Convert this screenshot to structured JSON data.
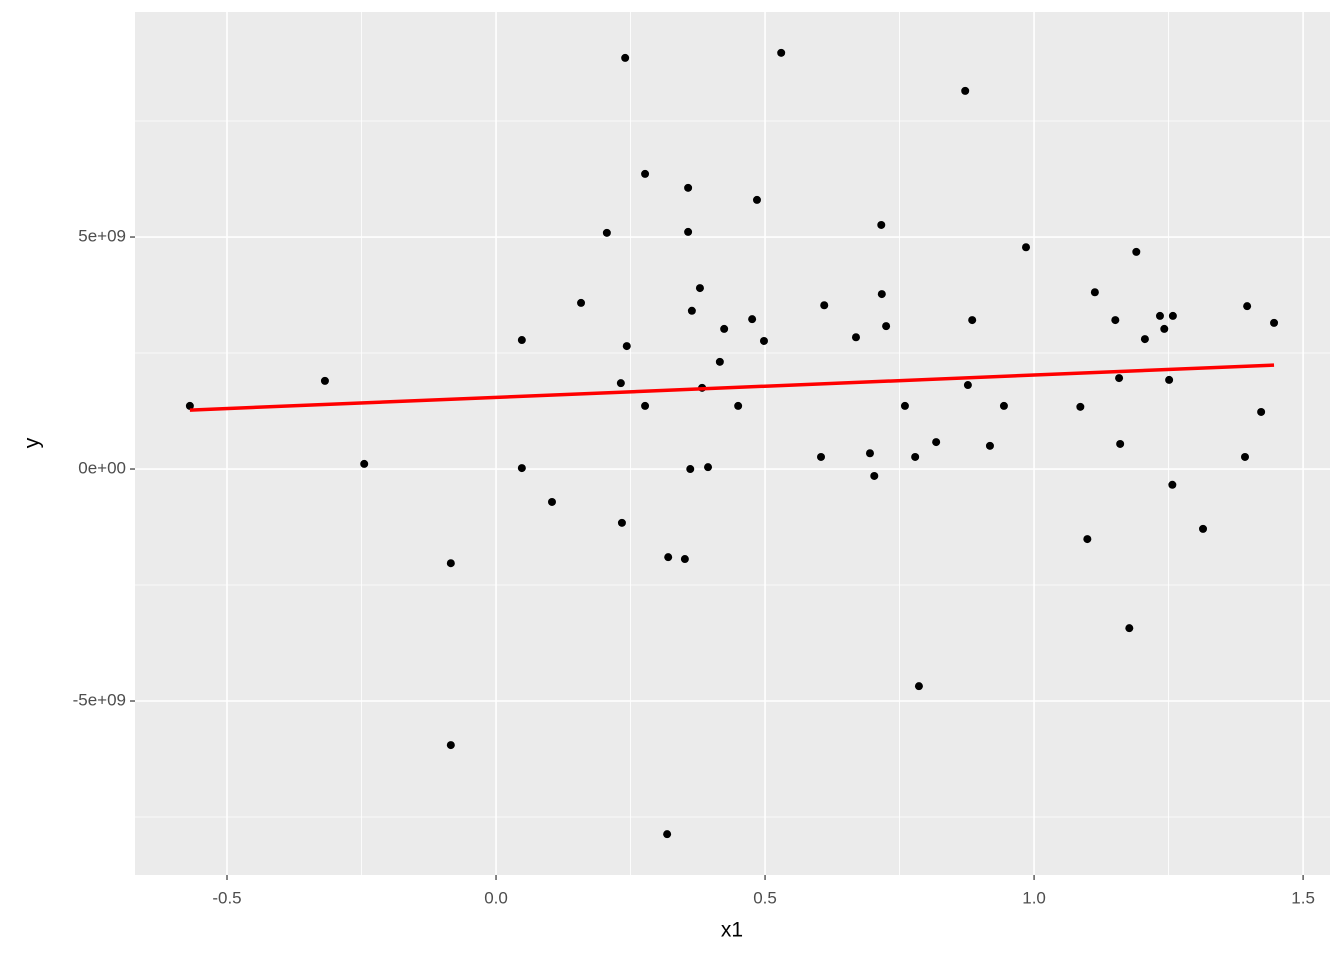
{
  "chart_data": {
    "type": "scatter",
    "x_label": "x1",
    "y_label": "y",
    "x": [
      -0.569,
      -0.318,
      -0.245,
      -0.084,
      -0.084,
      0.048,
      0.048,
      0.104,
      0.158,
      0.206,
      0.232,
      0.234,
      0.24,
      0.243,
      0.277,
      0.277,
      0.32,
      0.318,
      0.351,
      0.357,
      0.357,
      0.361,
      0.364,
      0.379,
      0.383,
      0.394,
      0.416,
      0.424,
      0.45,
      0.476,
      0.485,
      0.498,
      0.53,
      0.604,
      0.61,
      0.669,
      0.695,
      0.703,
      0.716,
      0.717,
      0.725,
      0.76,
      0.779,
      0.786,
      0.818,
      0.872,
      0.877,
      0.885,
      0.918,
      0.944,
      0.985,
      1.086,
      1.099,
      1.113,
      1.151,
      1.158,
      1.16,
      1.177,
      1.19,
      1.206,
      1.234,
      1.242,
      1.251,
      1.257,
      1.258,
      1.314,
      1.392,
      1.396,
      1.422,
      1.446
    ],
    "y": [
      1360000000.0,
      1900000000.0,
      110000000.0,
      -2030000000.0,
      -5950000000.0,
      2780000000.0,
      20000000.0,
      -710000000.0,
      3580000000.0,
      5090000000.0,
      1850000000.0,
      -1160000000.0,
      8860000000.0,
      2650000000.0,
      6360000000.0,
      1360000000.0,
      -1900000000.0,
      -7870000000.0,
      -1940000000.0,
      6060000000.0,
      5110000000.0,
      0,
      3410000000.0,
      3900000000.0,
      1750000000.0,
      40000000.0,
      2310000000.0,
      3020000000.0,
      1360000000.0,
      3230000000.0,
      5800000000.0,
      2760000000.0,
      8970000000.0,
      260000000.0,
      3530000000.0,
      2840000000.0,
      340000000.0,
      -150000000.0,
      5260000000.0,
      3770000000.0,
      3080000000.0,
      1360000000.0,
      260000000.0,
      -4680000000.0,
      580000000.0,
      8150000000.0,
      1810000000.0,
      3210000000.0,
      500000000.0,
      1360000000.0,
      4780000000.0,
      1340000000.0,
      -1510000000.0,
      3810000000.0,
      3210000000.0,
      1960000000.0,
      540000000.0,
      -3430000000.0,
      4680000000.0,
      2800000000.0,
      3300000000.0,
      3020000000.0,
      1920000000.0,
      -340000000.0,
      3300000000.0,
      -1290000000.0,
      260000000.0,
      3510000000.0,
      1230000000.0,
      3150000000.0
    ],
    "color": "#000000",
    "fit": {
      "x": [
        -0.569,
        1.446
      ],
      "y": [
        1270000000.0,
        2240000000.0
      ],
      "color": "#ff0000"
    },
    "xlim": [
      -0.671,
      1.55
    ],
    "ylim": [
      -8750000000.0,
      9850000000.0
    ],
    "xticks": [
      -0.5,
      {
        "value": 0,
        "label": "0.0"
      },
      0.5,
      {
        "value": 1,
        "label": "1.0"
      },
      1.5
    ],
    "yticks": [
      {
        "value": -5000000000.0,
        "label": "-5e+09"
      },
      {
        "value": 0,
        "label": "0e+00"
      },
      {
        "value": 5000000000.0,
        "label": "5e+09"
      }
    ],
    "xminor": [
      -0.25,
      0.25,
      0.75,
      1.25
    ],
    "yminor": [
      -7500000000.0,
      -2500000000.0,
      2500000000.0,
      7500000000.0
    ],
    "grid": true
  }
}
